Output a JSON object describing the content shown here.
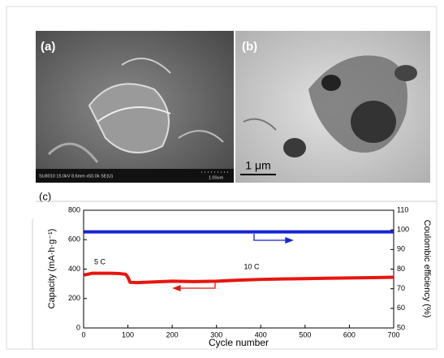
{
  "panels": {
    "a": {
      "label": "(a)",
      "info": "SU8010 15.0kV 8.6mm x50.0k SE(U)",
      "scale": "1.00um"
    },
    "b": {
      "label": "(b)",
      "scale": "1 μm"
    },
    "c": {
      "label": "(c)"
    }
  },
  "chart_data": {
    "type": "line",
    "x_label": "Cycle number",
    "y_label": "Capacity (mA·h·g⁻¹)",
    "y2_label": "Coulombic efficiency (%)",
    "annotations": [
      "5 C",
      "10 C"
    ],
    "x": [
      1,
      20,
      40,
      60,
      80,
      95,
      100,
      105,
      120,
      150,
      200,
      250,
      300,
      350,
      400,
      450,
      500,
      550,
      600,
      650,
      700
    ],
    "xlim": [
      0,
      700
    ],
    "xticks": [
      0,
      100,
      200,
      300,
      400,
      500,
      600,
      700
    ],
    "ylim": [
      0,
      800
    ],
    "yticks": [
      0,
      200,
      400,
      600,
      800
    ],
    "y2lim": [
      50,
      110
    ],
    "y2ticks": [
      50,
      60,
      70,
      80,
      90,
      100,
      110
    ],
    "series": [
      {
        "color": "#e8150f",
        "values": [
          360,
          372,
          372,
          372,
          370,
          365,
          345,
          310,
          308,
          312,
          318,
          315,
          318,
          325,
          330,
          333,
          335,
          338,
          340,
          342,
          345
        ]
      },
      {
        "color": "#1522d8",
        "axis": "y2",
        "values": [
          99,
          99,
          99,
          99,
          99,
          99,
          99,
          99,
          99,
          99,
          99,
          99,
          99,
          99,
          99,
          99,
          99,
          99,
          99,
          99,
          99
        ]
      }
    ]
  }
}
